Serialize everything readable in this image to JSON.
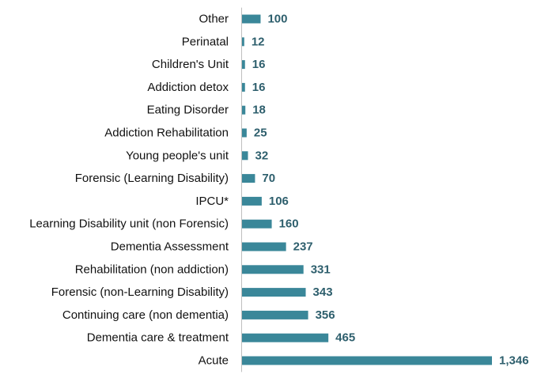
{
  "chart_data": {
    "type": "bar",
    "orientation": "horizontal",
    "title": "",
    "xlabel": "",
    "ylabel": "",
    "categories": [
      "Other",
      "Perinatal",
      "Children's Unit",
      "Addiction detox",
      "Eating Disorder",
      "Addiction Rehabilitation",
      "Young people's unit",
      "Forensic (Learning Disability)",
      "IPCU*",
      "Learning Disability unit (non Forensic)",
      "Dementia Assessment",
      "Rehabilitation (non addiction)",
      "Forensic (non-Learning Disability)",
      "Continuing care (non dementia)",
      "Dementia care & treatment",
      "Acute"
    ],
    "values": [
      100,
      12,
      16,
      16,
      18,
      25,
      32,
      70,
      106,
      160,
      237,
      331,
      343,
      356,
      465,
      1346
    ],
    "value_labels": [
      "100",
      "12",
      "16",
      "16",
      "18",
      "25",
      "32",
      "70",
      "106",
      "160",
      "237",
      "331",
      "343",
      "356",
      "465",
      "1,346"
    ],
    "xlim": [
      0,
      1346
    ],
    "grid": false,
    "axis_line": "left",
    "colors": {
      "bar": "#3a8799",
      "value_label": "#2e5f6d",
      "category_label": "#111111"
    }
  }
}
